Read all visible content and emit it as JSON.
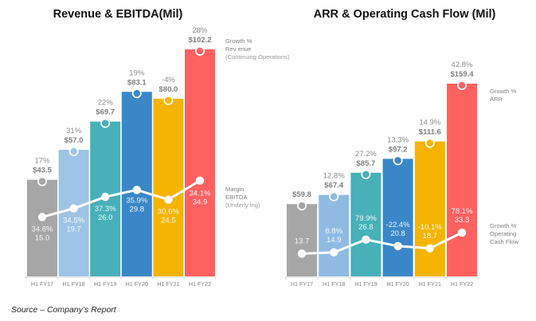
{
  "chart_data": [
    {
      "type": "bar",
      "title": "Revenue & EBITDA(Mil)",
      "categories": [
        "H1 FY17",
        "H1 FY18",
        "H1 FY19",
        "H1 FY20",
        "H1 FY21",
        "H1 FY22"
      ],
      "colors": [
        "#a6a6a6",
        "#9dc3e6",
        "#47b0b8",
        "#3a87c8",
        "#f4b400",
        "#ff6161"
      ],
      "ylim": [
        0,
        115
      ],
      "series": [
        {
          "name": "Revenue (Continuing Operations)",
          "kind": "bar",
          "values": [
            43.5,
            57.0,
            69.7,
            83.1,
            80.0,
            102.2
          ],
          "value_labels": [
            "$43.5",
            "$57.0",
            "$69.7",
            "$83.1",
            "$80.0",
            "$102.2"
          ],
          "growth_labels": [
            "17%",
            "31%",
            "22%",
            "19%",
            "-4%",
            "28%"
          ]
        },
        {
          "name": "EBITDA (Underlying)",
          "kind": "line",
          "values": [
            15.0,
            19.7,
            26.0,
            29.8,
            24.5,
            34.9
          ],
          "margin_labels": [
            "34.6%",
            "34.5%",
            "37.3%",
            "35.9%",
            "30.6%",
            "34.1%"
          ]
        }
      ],
      "legend": {
        "bar": [
          "Growth  %",
          "Rev enue",
          "(Continuing Operations)"
        ],
        "line": [
          "Margin",
          "EBITDA",
          "(Underly ing)"
        ]
      }
    },
    {
      "type": "bar",
      "title": "ARR & Operating Cash Flow (Mil)",
      "categories": [
        "H1 FY17",
        "H1 FY18",
        "H1 FY19",
        "H1 FY20",
        "H1 FY21",
        "H1 FY22"
      ],
      "colors": [
        "#a6a6a6",
        "#8fbbe3",
        "#47b0b8",
        "#3a87c8",
        "#f4b400",
        "#ff6161"
      ],
      "ylim": [
        0,
        180
      ],
      "series": [
        {
          "name": "ARR",
          "kind": "bar",
          "values": [
            59.8,
            67.4,
            85.7,
            97.2,
            111.6,
            159.4
          ],
          "value_labels": [
            "$59.8",
            "$67.4",
            "$85.7",
            "$97.2",
            "$111.6",
            "$159.4"
          ],
          "growth_labels": [
            "",
            "12.8%",
            "27.2%",
            "13.3%",
            "14.9%",
            "42.8%"
          ]
        },
        {
          "name": "Operating Cash Flow",
          "kind": "line",
          "values": [
            13.7,
            14.9,
            26.8,
            20.8,
            18.7,
            33.3
          ],
          "growth_labels": [
            "",
            "8.8%",
            "79.9%",
            "-22.4%",
            "-10.1%",
            "78.1%"
          ]
        }
      ],
      "legend": {
        "bar": [
          "Growth  %",
          "ARR"
        ],
        "line": [
          "Growth  %",
          "Operating",
          "Cash Flow"
        ]
      }
    }
  ],
  "footer": {
    "source": "Source – Company’s Report"
  }
}
